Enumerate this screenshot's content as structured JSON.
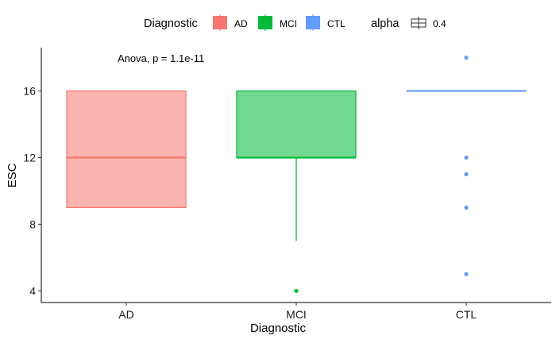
{
  "chart_data": {
    "type": "box",
    "categories": [
      "AD",
      "MCI",
      "CTL"
    ],
    "boxes": [
      {
        "name": "AD",
        "whisker_low": 9,
        "q1": 9,
        "median": 12,
        "q3": 16,
        "whisker_high": 16,
        "outliers": []
      },
      {
        "name": "MCI",
        "whisker_low": 7,
        "q1": 12,
        "median": 12,
        "q3": 16,
        "whisker_high": 16,
        "outliers": [
          4
        ]
      },
      {
        "name": "CTL",
        "whisker_low": 16,
        "q1": 16,
        "median": 16,
        "q3": 16,
        "whisker_high": 16,
        "outliers": [
          18,
          12,
          11,
          9,
          5
        ]
      }
    ],
    "xlabel": "Diagnostic",
    "ylabel": "ESC",
    "yticks": [
      4,
      8,
      12,
      16
    ],
    "ylim": [
      3.3,
      18.6
    ],
    "annotation": "Anova, p = 1.1e-11",
    "legend": {
      "position": "top",
      "fill_title": "Diagnostic",
      "fill_items": [
        "AD",
        "MCI",
        "CTL"
      ],
      "alpha_title": "alpha",
      "alpha_value": "0.4"
    },
    "colors": {
      "AD": "#F8766D",
      "MCI": "#00BA38",
      "CTL": "#619CFF"
    },
    "fill_alpha": 0.55,
    "grid": false
  }
}
